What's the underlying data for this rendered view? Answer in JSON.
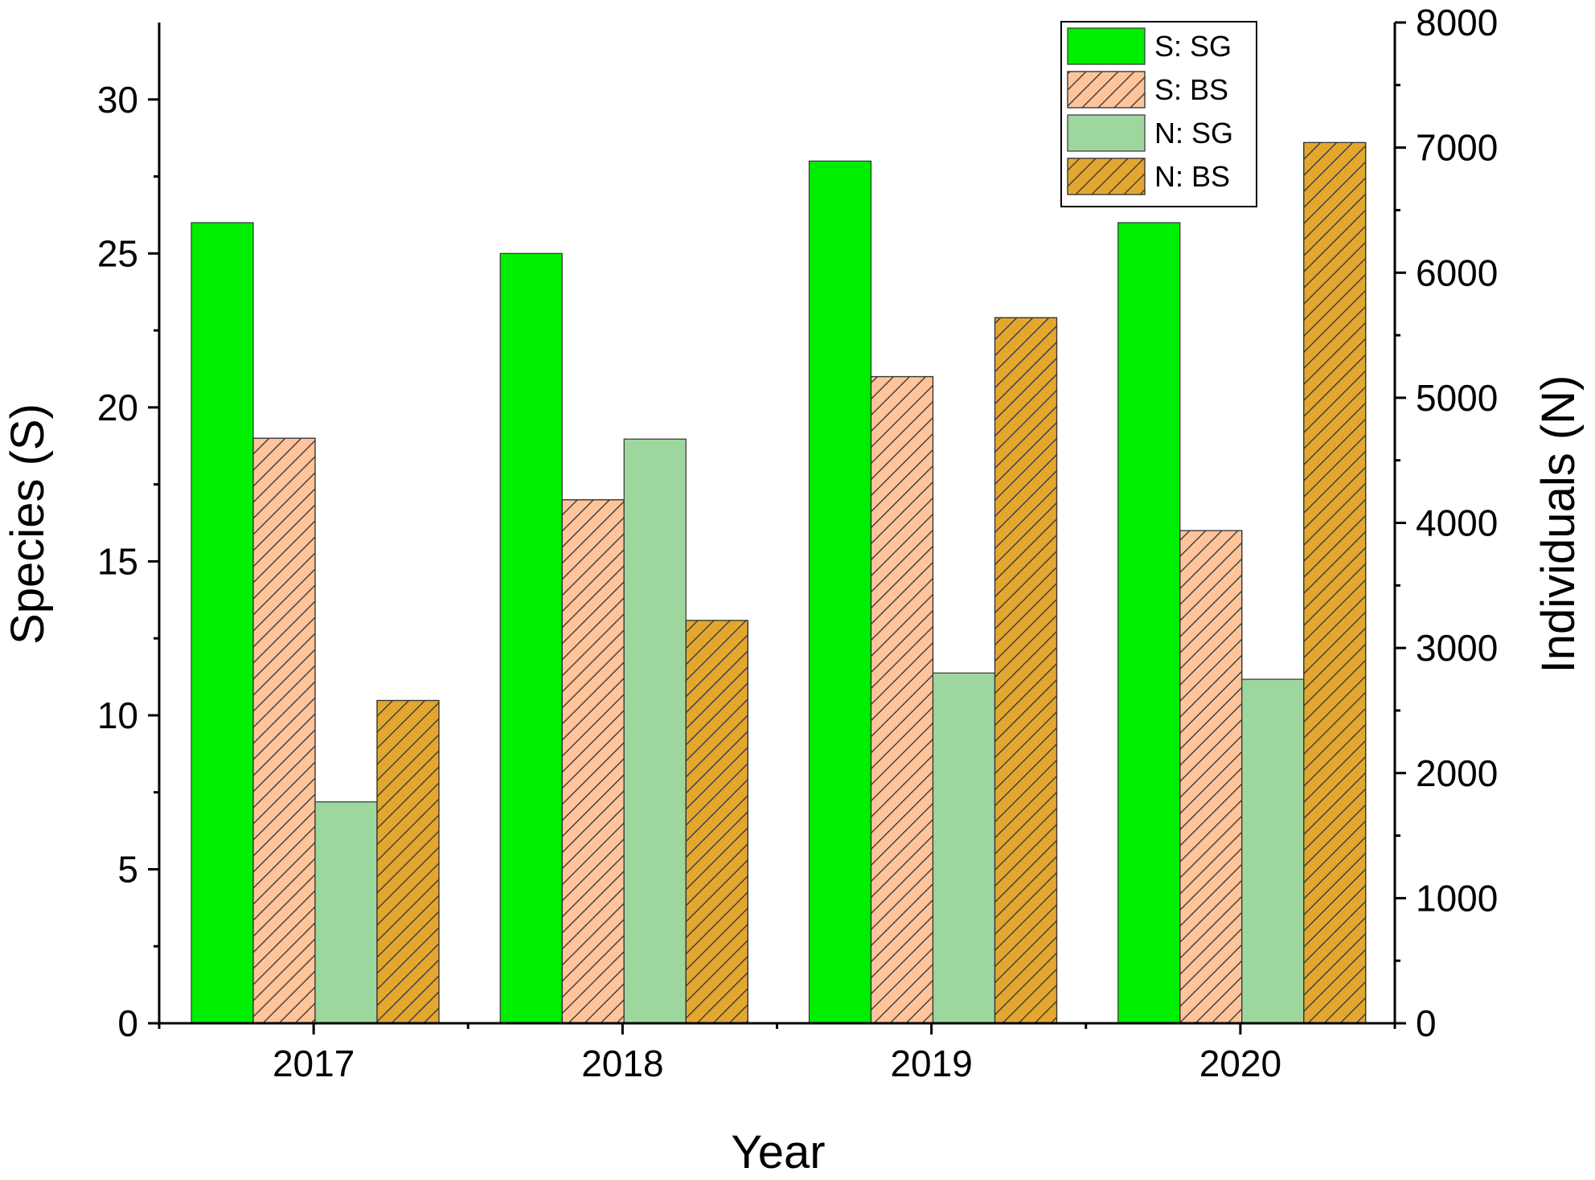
{
  "chart_data": {
    "type": "bar",
    "xlabel": "Year",
    "ylabel_left": "Species (S)",
    "ylabel_right": "Individuals (N)",
    "categories": [
      "2017",
      "2018",
      "2019",
      "2020"
    ],
    "y_left": {
      "lim": [
        0,
        32.5
      ],
      "ticks": [
        0,
        5,
        10,
        15,
        20,
        25,
        30
      ],
      "tick_labels": [
        "0",
        "5",
        "10",
        "15",
        "20",
        "25",
        "30"
      ]
    },
    "y_right": {
      "lim": [
        0,
        8000
      ],
      "ticks": [
        0,
        1000,
        2000,
        3000,
        4000,
        5000,
        6000,
        7000,
        8000
      ],
      "tick_labels": [
        "0",
        "1000",
        "2000",
        "3000",
        "4000",
        "5000",
        "6000",
        "7000",
        "8000"
      ]
    },
    "series": [
      {
        "name": "S: SG",
        "axis": "left",
        "values": [
          26,
          25,
          28,
          26
        ],
        "color": "#00ee00",
        "hatch": false
      },
      {
        "name": "S: BS",
        "axis": "left",
        "values": [
          19,
          17,
          21,
          16
        ],
        "color": "#ffc49a",
        "hatch": true
      },
      {
        "name": "N: SG",
        "axis": "right",
        "values": [
          1770,
          4670,
          2800,
          2750
        ],
        "color": "#9ed79e",
        "hatch": false
      },
      {
        "name": "N: BS",
        "axis": "right",
        "values": [
          2580,
          3220,
          5640,
          7040
        ],
        "color": "#e3a72f",
        "hatch": true
      }
    ],
    "grid": false,
    "legend_position": "top-right"
  }
}
